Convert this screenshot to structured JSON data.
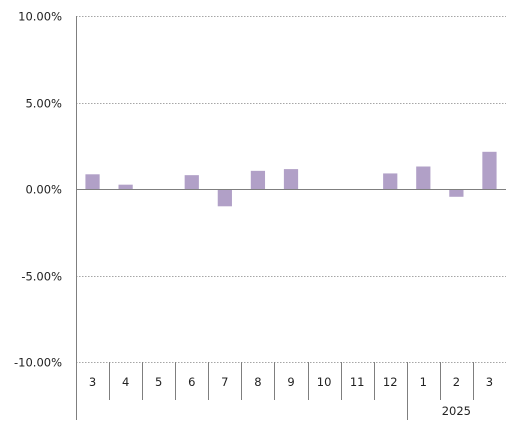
{
  "chart_data": {
    "type": "bar",
    "title": "",
    "xlabel": "",
    "ylabel": "",
    "ylim": [
      -10,
      10
    ],
    "y_ticks": [
      10,
      5,
      0,
      -5,
      -10
    ],
    "y_tick_labels": [
      "10.00%",
      "5.00%",
      "0.00%",
      "-5.00%",
      "-10.00%"
    ],
    "categories": [
      "3",
      "4",
      "5",
      "6",
      "7",
      "8",
      "9",
      "10",
      "11",
      "12",
      "1",
      "2",
      "3"
    ],
    "values": [
      0.85,
      0.25,
      0,
      0.8,
      -1.0,
      1.05,
      1.15,
      0,
      0,
      0.9,
      1.3,
      -0.45,
      2.15
    ],
    "group_labels": [
      {
        "label": "",
        "start": 0,
        "end": 9
      },
      {
        "label": "2025",
        "start": 10,
        "end": 12
      }
    ],
    "grid": true,
    "legend": "none",
    "colors": {
      "bar": "#b1a0c7",
      "grid": "#a6a6a6",
      "axis": "#7f7f7f"
    }
  }
}
